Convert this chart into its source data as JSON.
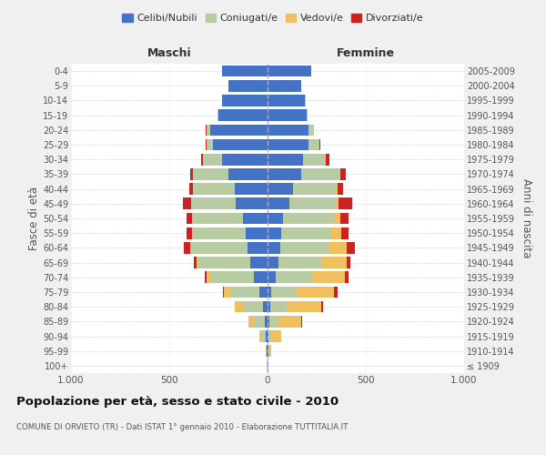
{
  "age_groups": [
    "100+",
    "95-99",
    "90-94",
    "85-89",
    "80-84",
    "75-79",
    "70-74",
    "65-69",
    "60-64",
    "55-59",
    "50-54",
    "45-49",
    "40-44",
    "35-39",
    "30-34",
    "25-29",
    "20-24",
    "15-19",
    "10-14",
    "5-9",
    "0-4"
  ],
  "birth_years": [
    "≤ 1909",
    "1910-1914",
    "1915-1919",
    "1920-1924",
    "1925-1929",
    "1930-1934",
    "1935-1939",
    "1940-1944",
    "1945-1949",
    "1950-1954",
    "1955-1959",
    "1960-1964",
    "1965-1969",
    "1970-1974",
    "1975-1979",
    "1980-1984",
    "1985-1989",
    "1990-1994",
    "1995-1999",
    "2000-2004",
    "2005-2009"
  ],
  "maschi": {
    "celibi": [
      2,
      3,
      8,
      15,
      25,
      40,
      70,
      90,
      100,
      110,
      125,
      160,
      165,
      200,
      230,
      280,
      290,
      250,
      230,
      200,
      230
    ],
    "coniugati": [
      1,
      5,
      20,
      50,
      100,
      150,
      220,
      260,
      290,
      270,
      260,
      230,
      215,
      180,
      100,
      30,
      20,
      5,
      3,
      0,
      0
    ],
    "vedovi": [
      0,
      3,
      15,
      30,
      40,
      30,
      20,
      10,
      5,
      2,
      1,
      0,
      0,
      0,
      0,
      0,
      0,
      0,
      0,
      0,
      0
    ],
    "divorziati": [
      0,
      0,
      0,
      0,
      0,
      5,
      10,
      15,
      30,
      30,
      25,
      40,
      20,
      15,
      10,
      5,
      5,
      0,
      0,
      0,
      0
    ]
  },
  "femmine": {
    "nubili": [
      2,
      3,
      5,
      10,
      15,
      20,
      40,
      55,
      65,
      70,
      80,
      110,
      130,
      170,
      180,
      210,
      210,
      200,
      190,
      170,
      220
    ],
    "coniugate": [
      1,
      5,
      15,
      40,
      80,
      130,
      185,
      220,
      250,
      255,
      260,
      240,
      220,
      195,
      115,
      55,
      25,
      5,
      3,
      0,
      0
    ],
    "vedove": [
      0,
      10,
      50,
      120,
      180,
      190,
      170,
      130,
      90,
      50,
      30,
      10,
      5,
      5,
      3,
      0,
      0,
      0,
      0,
      0,
      0
    ],
    "divorziate": [
      0,
      0,
      0,
      5,
      8,
      15,
      15,
      15,
      40,
      35,
      40,
      70,
      30,
      30,
      15,
      5,
      3,
      0,
      0,
      0,
      0
    ]
  },
  "colors": {
    "celibi_nubili": "#4472c4",
    "coniugati": "#b8cca4",
    "vedovi": "#f0c060",
    "divorziati": "#cc2222"
  },
  "title": "Popolazione per età, sesso e stato civile - 2010",
  "subtitle": "COMUNE DI ORVIETO (TR) - Dati ISTAT 1° gennaio 2010 - Elaborazione TUTTITALIA.IT",
  "xlabel_left": "Maschi",
  "xlabel_right": "Femmine",
  "ylabel_left": "Fasce di età",
  "ylabel_right": "Anni di nascita",
  "xlim": 1000,
  "legend_labels": [
    "Celibi/Nubili",
    "Coniugati/e",
    "Vedovi/e",
    "Divorziati/e"
  ],
  "background_color": "#f0f0f0",
  "plot_background": "#ffffff"
}
